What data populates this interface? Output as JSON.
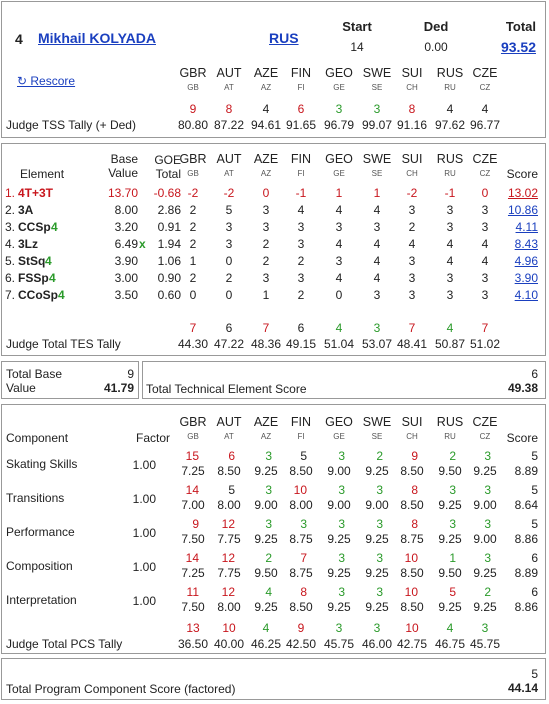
{
  "skater": {
    "number": "4",
    "name": "Mikhail KOLYADA",
    "nation": "RUS"
  },
  "header": {
    "start_label": "Start",
    "start_value": "14",
    "ded_label": "Ded",
    "ded_value": "0.00",
    "total_label": "Total",
    "total_value": "93.52"
  },
  "rescore_label": "↻ Rescore",
  "judges": [
    {
      "code": "GBR",
      "sub": "GB"
    },
    {
      "code": "AUT",
      "sub": "AT"
    },
    {
      "code": "AZE",
      "sub": "AZ"
    },
    {
      "code": "FIN",
      "sub": "FI"
    },
    {
      "code": "GEO",
      "sub": "GE"
    },
    {
      "code": "SWE",
      "sub": "SE"
    },
    {
      "code": "SUI",
      "sub": "CH"
    },
    {
      "code": "RUS",
      "sub": "RU"
    },
    {
      "code": "CZE",
      "sub": "CZ"
    }
  ],
  "tss": {
    "label": "Judge TSS Tally (+ Ded)",
    "ranks": [
      "9",
      "8",
      "4",
      "6",
      "3",
      "3",
      "8",
      "4",
      "4"
    ],
    "rank_colors": [
      "red",
      "red",
      "blk",
      "red",
      "green",
      "green",
      "red",
      "blk",
      "blk"
    ],
    "values": [
      "80.80",
      "87.22",
      "94.61",
      "91.65",
      "96.79",
      "99.07",
      "91.16",
      "97.62",
      "96.77"
    ]
  },
  "elements": {
    "headers": {
      "element": "Element",
      "base1": "Base",
      "base2": "Value",
      "goe1": "GOE",
      "goe2": "Total",
      "score": "Score"
    },
    "rows": [
      {
        "num": "1.",
        "name": "4T+3T",
        "lvl": "",
        "name_color": "red",
        "bv": "13.70",
        "mark": "",
        "goe": "-0.68",
        "goes": [
          "-2",
          "-2",
          "0",
          "-1",
          "1",
          "1",
          "-2",
          "-1",
          "0"
        ],
        "score": "13.02",
        "color": "red"
      },
      {
        "num": "2.",
        "name": "3A",
        "lvl": "",
        "name_color": "blk",
        "bv": "8.00",
        "mark": "",
        "goe": "2.86",
        "goes": [
          "2",
          "5",
          "3",
          "4",
          "4",
          "4",
          "3",
          "3",
          "3"
        ],
        "score": "10.86",
        "color": "blk"
      },
      {
        "num": "3.",
        "name": "CCSp",
        "lvl": "4",
        "name_color": "blk",
        "bv": "3.20",
        "mark": "",
        "goe": "0.91",
        "goes": [
          "2",
          "3",
          "3",
          "3",
          "3",
          "3",
          "2",
          "3",
          "3"
        ],
        "score": "4.11",
        "color": "blk"
      },
      {
        "num": "4.",
        "name": "3Lz",
        "lvl": "",
        "name_color": "blk",
        "bv": "6.49",
        "mark": "x",
        "goe": "1.94",
        "goes": [
          "2",
          "3",
          "2",
          "3",
          "4",
          "4",
          "4",
          "4",
          "4"
        ],
        "score": "8.43",
        "color": "blk"
      },
      {
        "num": "5.",
        "name": "StSq",
        "lvl": "4",
        "name_color": "blk",
        "bv": "3.90",
        "mark": "",
        "goe": "1.06",
        "goes": [
          "1",
          "0",
          "2",
          "2",
          "3",
          "4",
          "3",
          "4",
          "4"
        ],
        "score": "4.96",
        "color": "blk"
      },
      {
        "num": "6.",
        "name": "FSSp",
        "lvl": "4",
        "name_color": "blk",
        "bv": "3.00",
        "mark": "",
        "goe": "0.90",
        "goes": [
          "2",
          "2",
          "3",
          "3",
          "4",
          "4",
          "3",
          "3",
          "3"
        ],
        "score": "3.90",
        "color": "blk"
      },
      {
        "num": "7.",
        "name": "CCoSp",
        "lvl": "4",
        "name_color": "blk",
        "bv": "3.50",
        "mark": "",
        "goe": "0.60",
        "goes": [
          "0",
          "0",
          "1",
          "2",
          "0",
          "3",
          "3",
          "3",
          "3"
        ],
        "score": "4.10",
        "color": "blk"
      }
    ],
    "tes_tally": {
      "label": "Judge Total TES Tally",
      "ranks": [
        "7",
        "6",
        "7",
        "6",
        "4",
        "3",
        "7",
        "4",
        "7"
      ],
      "rank_colors": [
        "red",
        "blk",
        "red",
        "blk",
        "green",
        "green",
        "red",
        "green",
        "red"
      ],
      "values": [
        "44.30",
        "47.22",
        "48.36",
        "49.15",
        "51.04",
        "53.07",
        "48.41",
        "50.87",
        "51.02"
      ]
    }
  },
  "base_box": {
    "line1": "Total Base",
    "line2": "Value",
    "rank": "9",
    "value": "41.79"
  },
  "tes_box": {
    "label": "Total Technical Element Score",
    "rank": "6",
    "value": "49.38"
  },
  "components": {
    "headers": {
      "component": "Component",
      "factor": "Factor",
      "score": "Score"
    },
    "rows": [
      {
        "name": "Skating Skills",
        "factor": "1.00",
        "ranks": [
          "15",
          "6",
          "3",
          "5",
          "3",
          "2",
          "9",
          "2",
          "3"
        ],
        "rank_colors": [
          "red",
          "red",
          "green",
          "blk",
          "green",
          "green",
          "red",
          "green",
          "green"
        ],
        "marks": [
          "7.25",
          "8.50",
          "9.25",
          "8.50",
          "9.00",
          "9.25",
          "8.50",
          "9.50",
          "9.25"
        ],
        "score_rank": "5",
        "score": "8.89"
      },
      {
        "name": "Transitions",
        "factor": "1.00",
        "ranks": [
          "14",
          "5",
          "3",
          "10",
          "3",
          "3",
          "8",
          "3",
          "3"
        ],
        "rank_colors": [
          "red",
          "blk",
          "green",
          "red",
          "green",
          "green",
          "red",
          "green",
          "green"
        ],
        "marks": [
          "7.00",
          "8.00",
          "9.00",
          "8.00",
          "9.00",
          "9.00",
          "8.50",
          "9.25",
          "9.00"
        ],
        "score_rank": "5",
        "score": "8.64"
      },
      {
        "name": "Performance",
        "factor": "1.00",
        "ranks": [
          "9",
          "12",
          "3",
          "3",
          "3",
          "3",
          "8",
          "3",
          "3"
        ],
        "rank_colors": [
          "red",
          "red",
          "green",
          "green",
          "green",
          "green",
          "red",
          "green",
          "green"
        ],
        "marks": [
          "7.50",
          "7.75",
          "9.25",
          "8.75",
          "9.25",
          "9.25",
          "8.75",
          "9.25",
          "9.00"
        ],
        "score_rank": "5",
        "score": "8.86"
      },
      {
        "name": "Composition",
        "factor": "1.00",
        "ranks": [
          "14",
          "12",
          "2",
          "7",
          "3",
          "3",
          "10",
          "1",
          "3"
        ],
        "rank_colors": [
          "red",
          "red",
          "green",
          "red",
          "green",
          "green",
          "red",
          "green",
          "green"
        ],
        "marks": [
          "7.25",
          "7.75",
          "9.50",
          "8.75",
          "9.25",
          "9.25",
          "8.50",
          "9.50",
          "9.25"
        ],
        "score_rank": "6",
        "score": "8.89"
      },
      {
        "name": "Interpretation",
        "factor": "1.00",
        "ranks": [
          "11",
          "12",
          "4",
          "8",
          "3",
          "3",
          "10",
          "5",
          "2"
        ],
        "rank_colors": [
          "red",
          "red",
          "green",
          "red",
          "green",
          "green",
          "red",
          "red",
          "green"
        ],
        "marks": [
          "7.50",
          "8.00",
          "9.25",
          "8.50",
          "9.25",
          "9.25",
          "8.50",
          "9.25",
          "9.25"
        ],
        "score_rank": "6",
        "score": "8.86"
      }
    ],
    "pcs_tally": {
      "label": "Judge Total PCS Tally",
      "ranks": [
        "13",
        "10",
        "4",
        "9",
        "3",
        "3",
        "10",
        "4",
        "3"
      ],
      "rank_colors": [
        "red",
        "red",
        "green",
        "red",
        "green",
        "green",
        "red",
        "green",
        "green"
      ],
      "values": [
        "36.50",
        "40.00",
        "46.25",
        "42.50",
        "45.75",
        "46.00",
        "42.75",
        "46.75",
        "45.75"
      ]
    }
  },
  "pcs_box": {
    "label": "Total Program Component Score (factored)",
    "rank": "5",
    "value": "44.14"
  },
  "colors": {
    "red": "#c8161d",
    "green": "#2a9a2a",
    "link": "#1a3fbf",
    "border": "#999999"
  }
}
